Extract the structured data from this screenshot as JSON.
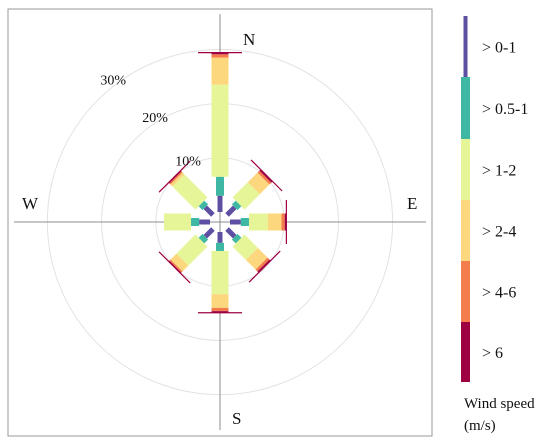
{
  "chart_data": {
    "type": "wind-rose",
    "directions": [
      {
        "label": "N",
        "angle": 0
      },
      {
        "label": "NE",
        "angle": 45
      },
      {
        "label": "E",
        "angle": 90
      },
      {
        "label": "SE",
        "angle": 135
      },
      {
        "label": "S",
        "angle": 180
      },
      {
        "label": "SW",
        "angle": 225
      },
      {
        "label": "W",
        "angle": 270
      },
      {
        "label": "NW",
        "angle": 315
      }
    ],
    "cardinal_labels": [
      "N",
      "E",
      "S",
      "W"
    ],
    "radial_ticks": [
      {
        "value": 10,
        "label": "10%"
      },
      {
        "value": 20,
        "label": "20%"
      },
      {
        "value": 30,
        "label": "30%"
      }
    ],
    "rlim": [
      0,
      38
    ],
    "series": [
      {
        "name": "> 0-1",
        "color": "#5e4fa2",
        "values": [
          3.0,
          2.0,
          2.0,
          2.0,
          2.0,
          2.0,
          2.0,
          2.0
        ]
      },
      {
        "name": "> 0.5-1",
        "color": "#3fb8a3",
        "values": [
          3.5,
          1.0,
          1.5,
          1.0,
          1.5,
          1.0,
          1.5,
          1.0
        ]
      },
      {
        "name": "> 1-2",
        "color": "#e6f598",
        "values": [
          17.0,
          4.0,
          3.5,
          3.5,
          8.0,
          5.0,
          5.0,
          6.0
        ]
      },
      {
        "name": "> 2-4",
        "color": "#fdd77e",
        "values": [
          5.0,
          2.5,
          2.5,
          2.5,
          2.5,
          1.5,
          0,
          0.5
        ]
      },
      {
        "name": "> 4-6",
        "color": "#f47d4d",
        "values": [
          0.6,
          0.5,
          0.6,
          0.5,
          0.6,
          0.3,
          0,
          0.3
        ]
      },
      {
        "name": "> 6",
        "color": "#9e0142",
        "values": [
          0.3,
          0.3,
          0.3,
          0.3,
          0.3,
          0.2,
          0,
          0.2
        ]
      }
    ],
    "legend": {
      "title": "Wind speed",
      "unit": "(m/s)",
      "position": "right"
    }
  }
}
